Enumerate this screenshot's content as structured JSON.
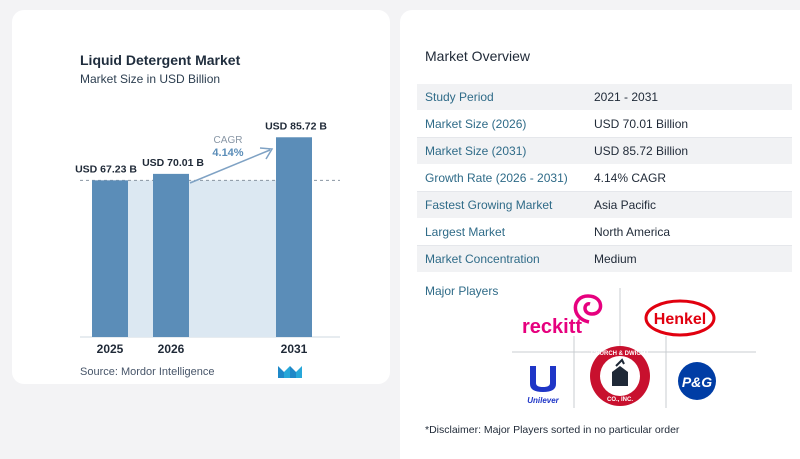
{
  "chart_data": {
    "type": "bar",
    "title": "Liquid Detergent Market",
    "subtitle": "Market Size in USD Billion",
    "categories": [
      "2025",
      "2026",
      "2031"
    ],
    "values": [
      67.23,
      70.01,
      85.72
    ],
    "value_labels": [
      "USD 67.23 B",
      "USD 70.01 B",
      "USD 85.72 B"
    ],
    "cagr_label": "CAGR",
    "cagr_value": "4.14%",
    "bar_color": "#5b8db8",
    "band_color": "#dce8f2",
    "arrow_color": "#7fa2c4",
    "grid": false
  },
  "source": "Source:  Mordor Intelligence",
  "overview": {
    "title": "Market Overview",
    "rows": [
      {
        "label": "Study Period",
        "value": "2021 - 2031"
      },
      {
        "label": "Market Size (2026)",
        "value": "USD 70.01 Billion"
      },
      {
        "label": "Market Size (2031)",
        "value": "USD 85.72 Billion"
      },
      {
        "label": "Growth Rate (2026 - 2031)",
        "value": "4.14% CAGR"
      },
      {
        "label": "Fastest Growing Market",
        "value": "Asia Pacific"
      },
      {
        "label": "Largest Market",
        "value": "North America"
      },
      {
        "label": "Market Concentration",
        "value": "Medium"
      }
    ]
  },
  "players": {
    "title": "Major Players",
    "logos": [
      {
        "name": "reckitt",
        "text": "reckitt",
        "color": "#e6007e"
      },
      {
        "name": "henkel",
        "text": "Henkel",
        "color": "#e1000f"
      },
      {
        "name": "unilever",
        "text": "Unilever",
        "color": "#1f36c7"
      },
      {
        "name": "church-dwight",
        "text": "CHURCH & DWIGHT CO., INC.",
        "color": "#c8102e"
      },
      {
        "name": "pg",
        "text": "P&G",
        "color": "#003da5"
      }
    ]
  },
  "disclaimer": "*Disclaimer: Major Players sorted in no particular order"
}
